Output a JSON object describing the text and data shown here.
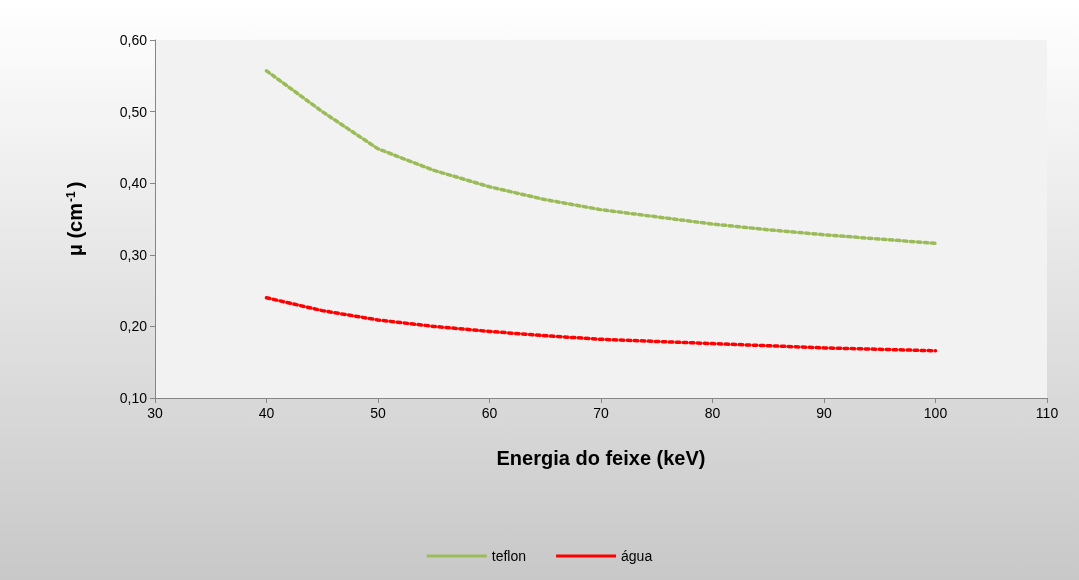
{
  "chart_data": {
    "type": "line",
    "xlabel": "Energia do feixe (keV)",
    "ylabel": "μ (cm$^{-1}$)",
    "x": [
      40,
      45,
      50,
      55,
      60,
      65,
      70,
      75,
      80,
      85,
      90,
      95,
      100
    ],
    "series": [
      {
        "name": "teflon",
        "color": "#9bbb59",
        "values": [
          0.557,
          0.5,
          0.448,
          0.418,
          0.395,
          0.377,
          0.363,
          0.353,
          0.343,
          0.335,
          0.328,
          0.322,
          0.316
        ]
      },
      {
        "name": "água",
        "color": "#ff0000",
        "values": [
          0.24,
          0.222,
          0.209,
          0.2,
          0.193,
          0.187,
          0.182,
          0.179,
          0.176,
          0.173,
          0.17,
          0.168,
          0.166
        ]
      }
    ],
    "xlim": [
      30,
      110
    ],
    "xticks": [
      30,
      40,
      50,
      60,
      70,
      80,
      90,
      100,
      110
    ],
    "ylim": [
      0.1,
      0.6
    ],
    "yticks": [
      {
        "value": 0.1,
        "label": "0,10"
      },
      {
        "value": 0.2,
        "label": "0,20"
      },
      {
        "value": 0.3,
        "label": "0,30"
      },
      {
        "value": 0.4,
        "label": "0,40"
      },
      {
        "value": 0.5,
        "label": "0,50"
      },
      {
        "value": 0.6,
        "label": "0,60"
      }
    ],
    "grid": false,
    "legend": "bottom",
    "marker": "none",
    "line_style": "dotted"
  }
}
